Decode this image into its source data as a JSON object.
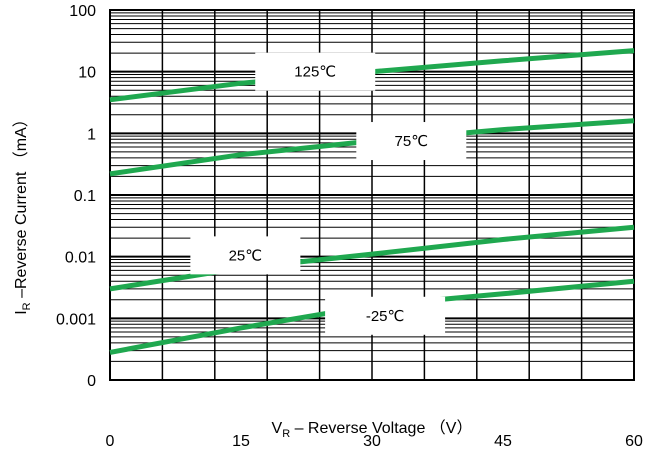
{
  "chart_data": {
    "type": "line",
    "xlabel_main": "V",
    "xlabel_sub": "R",
    "xlabel_rest": " – Reverse Voltage （V）",
    "ylabel_main": "I",
    "ylabel_sub": "R",
    "ylabel_rest": " –Reverse Current （mA）",
    "xlim": [
      0,
      60
    ],
    "ylim": [
      0.0001,
      100
    ],
    "yscale": "log",
    "x_ticks": [
      0,
      15,
      30,
      45,
      60
    ],
    "x_tick_labels": [
      "0",
      "15",
      "30",
      "45",
      "60"
    ],
    "y_ticks": [
      0.0001,
      0.001,
      0.01,
      0.1,
      1,
      10,
      100
    ],
    "y_tick_labels": [
      "0",
      "0.001",
      "0.01",
      "0.1",
      "1",
      "10",
      "100"
    ],
    "grid": true,
    "series_color": "#1fa84f",
    "series": [
      {
        "name": "125℃",
        "x": [
          0,
          15,
          30,
          45,
          60
        ],
        "values": [
          3.5,
          6.5,
          10,
          15,
          22
        ]
      },
      {
        "name": "75℃",
        "x": [
          0,
          15,
          30,
          45,
          60
        ],
        "values": [
          0.22,
          0.45,
          0.75,
          1.15,
          1.6
        ]
      },
      {
        "name": "25℃",
        "x": [
          0,
          15,
          30,
          45,
          60
        ],
        "values": [
          0.003,
          0.0065,
          0.011,
          0.019,
          0.03
        ]
      },
      {
        "name": "-25℃",
        "x": [
          0,
          15,
          30,
          45,
          60
        ],
        "values": [
          0.00028,
          0.0007,
          0.0016,
          0.0025,
          0.004
        ]
      }
    ],
    "annotations": [
      {
        "text": "125℃",
        "x": 23.5,
        "y": 10
      },
      {
        "text": "75℃",
        "x": 34.5,
        "y": 0.75
      },
      {
        "text": "25℃",
        "x": 15.5,
        "y": 0.0105
      },
      {
        "text": "-25℃",
        "x": 31.5,
        "y": 0.0011
      }
    ]
  }
}
